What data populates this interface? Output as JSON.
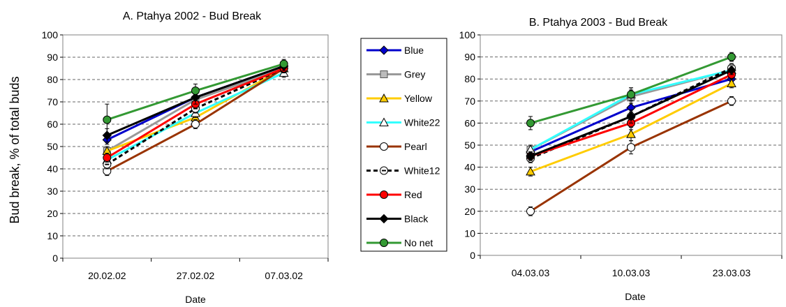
{
  "chart_data": [
    {
      "type": "line",
      "title": "A.  Ptahya 2002 - Bud Break",
      "xlabel": "Date",
      "ylabel": "Bud break, % of total buds",
      "categories": [
        "20.02.02",
        "27.02.02",
        "07.03.02"
      ],
      "ylim": [
        0,
        100
      ],
      "yticks": [
        0,
        10,
        20,
        30,
        40,
        50,
        60,
        70,
        80,
        90,
        100
      ],
      "grid": "horizontal-dashed",
      "series": [
        {
          "name": "Blue",
          "values": [
            53,
            72,
            86
          ]
        },
        {
          "name": "Grey",
          "values": [
            48,
            71,
            85
          ]
        },
        {
          "name": "Yellow",
          "values": [
            48,
            63,
            85
          ]
        },
        {
          "name": "White22",
          "values": [
            44,
            65,
            83
          ]
        },
        {
          "name": "Pearl",
          "values": [
            39,
            60,
            85
          ]
        },
        {
          "name": "White12",
          "values": [
            42,
            67,
            85
          ]
        },
        {
          "name": "Red",
          "values": [
            45,
            69,
            85
          ]
        },
        {
          "name": "Black",
          "values": [
            55,
            72,
            86
          ]
        },
        {
          "name": "No net",
          "values": [
            62,
            75,
            87
          ]
        }
      ],
      "error_bars": [
        [
          2,
          2,
          2
        ],
        [
          2,
          2,
          2
        ],
        [
          2,
          2,
          2
        ],
        [
          2,
          2,
          2
        ],
        [
          2,
          2,
          2
        ],
        [
          2,
          2,
          2
        ],
        [
          2,
          2,
          2
        ],
        [
          3,
          3,
          2
        ],
        [
          7,
          3,
          2
        ]
      ]
    },
    {
      "type": "line",
      "title": "B.  Ptahya 2003 - Bud Break",
      "xlabel": "Date",
      "ylabel": "",
      "categories": [
        "04.03.03",
        "10.03.03",
        "23.03.03"
      ],
      "ylim": [
        0,
        100
      ],
      "yticks": [
        0,
        10,
        20,
        30,
        40,
        50,
        60,
        70,
        80,
        90,
        100
      ],
      "grid": "horizontal-dashed",
      "series": [
        {
          "name": "Blue",
          "values": [
            47,
            67,
            80
          ]
        },
        {
          "name": "Grey",
          "values": [
            48,
            72,
            84
          ]
        },
        {
          "name": "Yellow",
          "values": [
            38,
            55,
            78
          ]
        },
        {
          "name": "White22",
          "values": [
            48,
            73,
            84
          ]
        },
        {
          "name": "Pearl",
          "values": [
            20,
            49,
            70
          ]
        },
        {
          "name": "White12",
          "values": [
            44,
            63,
            85
          ]
        },
        {
          "name": "Red",
          "values": [
            45,
            60,
            82
          ]
        },
        {
          "name": "Black",
          "values": [
            45,
            63,
            84
          ]
        },
        {
          "name": "No net",
          "values": [
            60,
            73,
            90
          ]
        }
      ],
      "error_bars": [
        [
          2,
          2,
          2
        ],
        [
          2,
          3,
          2
        ],
        [
          2,
          3,
          2
        ],
        [
          2,
          3,
          2
        ],
        [
          2,
          3,
          2
        ],
        [
          2,
          3,
          2
        ],
        [
          2,
          3,
          2
        ],
        [
          2,
          3,
          2
        ],
        [
          3,
          3,
          2
        ]
      ]
    }
  ],
  "legend": {
    "placement": "between-charts",
    "entries": [
      {
        "label": "Blue",
        "color": "#0000cc",
        "marker": "diamond",
        "marker_fill": "#0000cc",
        "dashed": false
      },
      {
        "label": "Grey",
        "color": "#999999",
        "marker": "square",
        "marker_fill": "#bbbbbb",
        "dashed": false
      },
      {
        "label": "Yellow",
        "color": "#ffcc00",
        "marker": "triangle",
        "marker_fill": "#ffcc00",
        "dashed": false
      },
      {
        "label": "White22",
        "color": "#33ffff",
        "marker": "triangle",
        "marker_fill": "#ffffff",
        "dashed": false
      },
      {
        "label": "Pearl",
        "color": "#993300",
        "marker": "circle",
        "marker_fill": "#ffffff",
        "dashed": false
      },
      {
        "label": "White12",
        "color": "#000000",
        "marker": "circle-dash",
        "marker_fill": "#ffffff",
        "dashed": true
      },
      {
        "label": "Red",
        "color": "#ff0000",
        "marker": "circle",
        "marker_fill": "#ff0000",
        "dashed": false
      },
      {
        "label": "Black",
        "color": "#000000",
        "marker": "diamond",
        "marker_fill": "#000000",
        "dashed": false
      },
      {
        "label": "No net",
        "color": "#339933",
        "marker": "circle",
        "marker_fill": "#339933",
        "dashed": false
      }
    ]
  }
}
